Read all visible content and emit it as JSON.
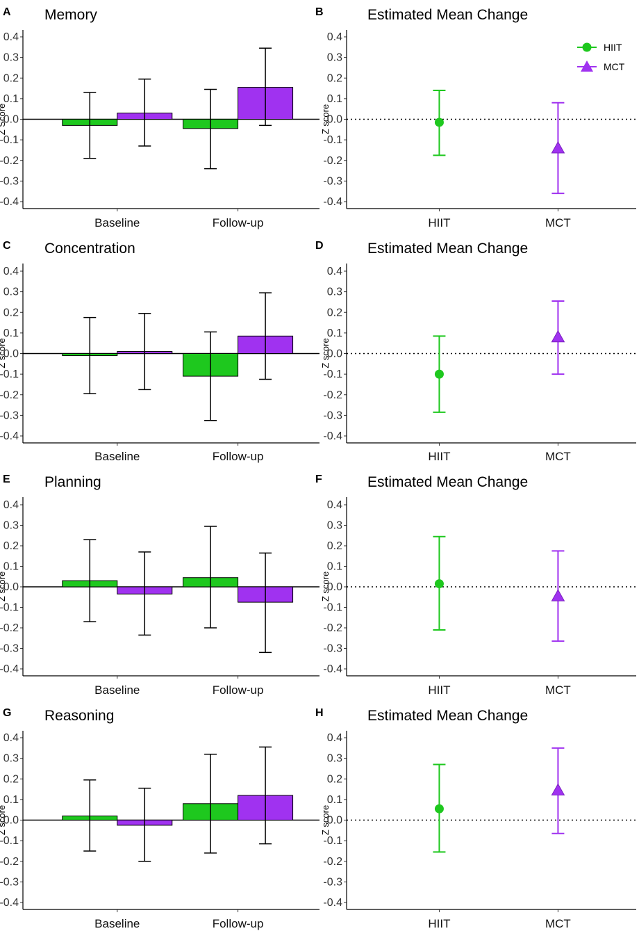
{
  "figure": {
    "colors": {
      "HIIT": "#1ec81e",
      "MCT": "#a032f0",
      "axis": "#000000"
    },
    "legend": {
      "placement": "top-right of panel B",
      "entries": [
        {
          "label": "HIIT",
          "marker": "circle"
        },
        {
          "label": "MCT",
          "marker": "triangle"
        }
      ]
    }
  },
  "chart_data": [
    {
      "letter": "A",
      "type": "bar",
      "title": "Memory",
      "ylabel": "Z Score",
      "ylim": [
        -0.44,
        0.44
      ],
      "yticks": [
        "0.4",
        "0.3",
        "0.2",
        "0.1",
        "0.0",
        "-0.1",
        "-0.2",
        "-0.3",
        "-0.4"
      ],
      "categories": [
        "Baseline",
        "Follow-up"
      ],
      "series": [
        {
          "name": "HIIT",
          "values": [
            -0.03,
            -0.045
          ],
          "ci_low": [
            -0.19,
            -0.24
          ],
          "ci_high": [
            0.13,
            0.145
          ]
        },
        {
          "name": "MCT",
          "values": [
            0.03,
            0.155
          ],
          "ci_low": [
            -0.13,
            -0.03
          ],
          "ci_high": [
            0.195,
            0.345
          ]
        }
      ]
    },
    {
      "letter": "B",
      "type": "scatter",
      "title": "Estimated Mean Change",
      "ylabel": "Z score",
      "ylim": [
        -0.44,
        0.44
      ],
      "yticks": [
        "0.4",
        "0.3",
        "0.2",
        "0.1",
        "0.0",
        "-0.1",
        "-0.2",
        "-0.3",
        "-0.4"
      ],
      "categories": [
        "HIIT",
        "MCT"
      ],
      "values": [
        -0.015,
        -0.14
      ],
      "ci_low": [
        -0.175,
        -0.36
      ],
      "ci_high": [
        0.14,
        0.08
      ],
      "reference_line": 0,
      "legend": true
    },
    {
      "letter": "C",
      "type": "bar",
      "title": "Concentration",
      "ylabel": "Z score",
      "ylim": [
        -0.44,
        0.44
      ],
      "yticks": [
        "0.4",
        "0.3",
        "0.2",
        "0.1",
        "0.0",
        "-0.1",
        "-0.2",
        "-0.3",
        "-0.4"
      ],
      "categories": [
        "Baseline",
        "Follow-up"
      ],
      "series": [
        {
          "name": "HIIT",
          "values": [
            -0.01,
            -0.11
          ],
          "ci_low": [
            -0.195,
            -0.325
          ],
          "ci_high": [
            0.175,
            0.105
          ]
        },
        {
          "name": "MCT",
          "values": [
            0.01,
            0.085
          ],
          "ci_low": [
            -0.175,
            -0.125
          ],
          "ci_high": [
            0.195,
            0.295
          ]
        }
      ]
    },
    {
      "letter": "D",
      "type": "scatter",
      "title": "Estimated Mean Change",
      "ylabel": "Z score",
      "ylim": [
        -0.44,
        0.44
      ],
      "yticks": [
        "0.4",
        "0.3",
        "0.2",
        "0.1",
        "0.0",
        "-0.1",
        "-0.2",
        "-0.3",
        "-0.4"
      ],
      "categories": [
        "HIIT",
        "MCT"
      ],
      "values": [
        -0.1,
        0.08
      ],
      "ci_low": [
        -0.285,
        -0.1
      ],
      "ci_high": [
        0.085,
        0.255
      ],
      "reference_line": 0,
      "legend": false
    },
    {
      "letter": "E",
      "type": "bar",
      "title": "Planning",
      "ylabel": "Z score",
      "ylim": [
        -0.44,
        0.44
      ],
      "yticks": [
        "0.4",
        "0.3",
        "0.2",
        "0.1",
        "0.0",
        "-0.1",
        "-0.2",
        "-0.3",
        "-0.4"
      ],
      "categories": [
        "Baseline",
        "Follow-up"
      ],
      "series": [
        {
          "name": "HIIT",
          "values": [
            0.03,
            0.045
          ],
          "ci_low": [
            -0.17,
            -0.2
          ],
          "ci_high": [
            0.23,
            0.295
          ]
        },
        {
          "name": "MCT",
          "values": [
            -0.035,
            -0.075
          ],
          "ci_low": [
            -0.235,
            -0.32
          ],
          "ci_high": [
            0.17,
            0.165
          ]
        }
      ]
    },
    {
      "letter": "F",
      "type": "scatter",
      "title": "Estimated Mean Change",
      "ylabel": "Z score",
      "ylim": [
        -0.44,
        0.44
      ],
      "yticks": [
        "0.4",
        "0.3",
        "0.2",
        "0.1",
        "0.0",
        "-0.1",
        "-0.2",
        "-0.3",
        "-0.4"
      ],
      "categories": [
        "HIIT",
        "MCT"
      ],
      "values": [
        0.015,
        -0.045
      ],
      "ci_low": [
        -0.21,
        -0.265
      ],
      "ci_high": [
        0.245,
        0.175
      ],
      "reference_line": 0,
      "legend": false
    },
    {
      "letter": "G",
      "type": "bar",
      "title": "Reasoning",
      "ylabel": "Z score",
      "ylim": [
        -0.44,
        0.44
      ],
      "yticks": [
        "0.4",
        "0.3",
        "0.2",
        "0.1",
        "0.0",
        "-0.1",
        "-0.2",
        "-0.3",
        "-0.4"
      ],
      "categories": [
        "Baseline",
        "Follow-up"
      ],
      "series": [
        {
          "name": "HIIT",
          "values": [
            0.02,
            0.08
          ],
          "ci_low": [
            -0.15,
            -0.16
          ],
          "ci_high": [
            0.195,
            0.32
          ]
        },
        {
          "name": "MCT",
          "values": [
            -0.025,
            0.12
          ],
          "ci_low": [
            -0.2,
            -0.115
          ],
          "ci_high": [
            0.155,
            0.355
          ]
        }
      ]
    },
    {
      "letter": "H",
      "type": "scatter",
      "title": "Estimated Mean Change",
      "ylabel": "Z score",
      "ylim": [
        -0.44,
        0.44
      ],
      "yticks": [
        "0.4",
        "0.3",
        "0.2",
        "0.1",
        "0.0",
        "-0.1",
        "-0.2",
        "-0.3",
        "-0.4"
      ],
      "categories": [
        "HIIT",
        "MCT"
      ],
      "values": [
        0.055,
        0.145
      ],
      "ci_low": [
        -0.155,
        -0.065
      ],
      "ci_high": [
        0.27,
        0.35
      ],
      "reference_line": 0,
      "legend": false
    }
  ]
}
